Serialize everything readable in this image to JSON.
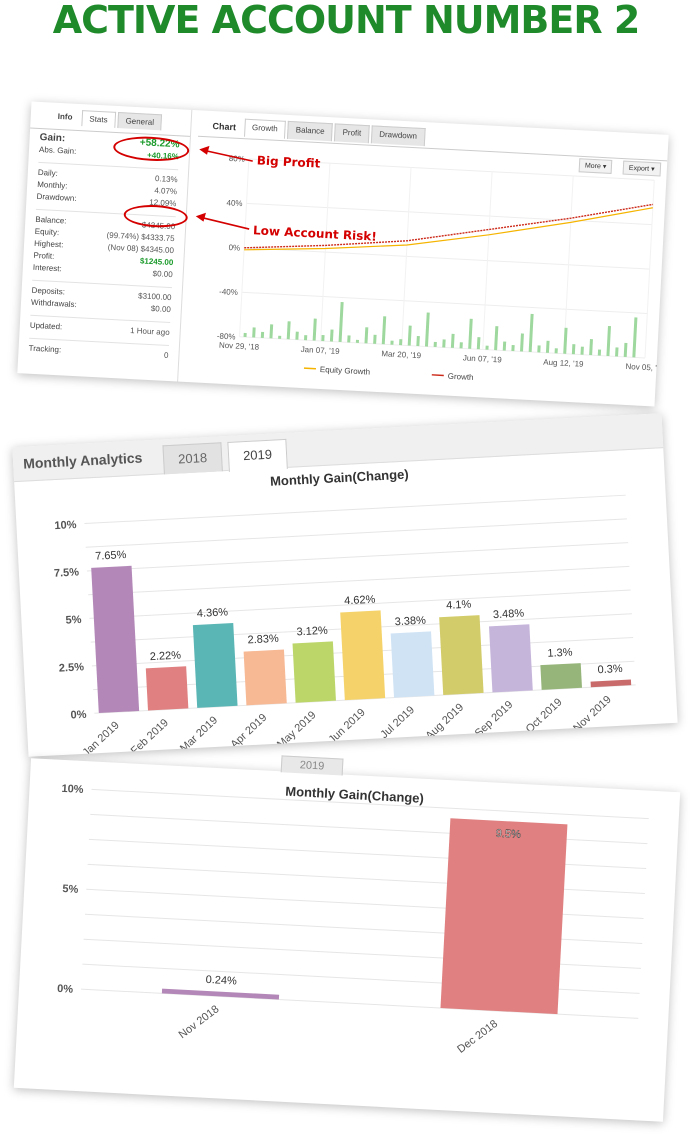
{
  "headline": "ACTIVE ACCOUNT NUMBER 2",
  "colors": {
    "headline": "#1e8a2a",
    "annotation": "#d40000",
    "profit_green": "#1a9a2a"
  },
  "info_panel": {
    "tabs": [
      "Info",
      "Stats",
      "General"
    ],
    "rows": [
      {
        "label": "Gain:",
        "value": "+58.22%"
      },
      {
        "label": "Abs. Gain:",
        "value": "+40.16%"
      },
      {
        "label": "Daily:",
        "value": "0.13%"
      },
      {
        "label": "Monthly:",
        "value": "4.07%"
      },
      {
        "label": "Drawdown:",
        "value": "12.09%"
      },
      {
        "label": "Balance:",
        "value": "$4345.00"
      },
      {
        "label": "Equity:",
        "value": "(99.74%) $4333.75"
      },
      {
        "label": "Highest:",
        "value": "(Nov 08) $4345.00"
      },
      {
        "label": "Profit:",
        "value": "$1245.00"
      },
      {
        "label": "Interest:",
        "value": "$0.00"
      },
      {
        "label": "Deposits:",
        "value": "$3100.00"
      },
      {
        "label": "Withdrawals:",
        "value": "$0.00"
      },
      {
        "label": "Updated:",
        "value": "1 Hour ago"
      },
      {
        "label": "Tracking:",
        "value": "0"
      }
    ]
  },
  "annotations": {
    "big_profit": "Big Profit",
    "low_risk": "Low Account Risk!"
  },
  "growth_panel": {
    "title": "Chart",
    "tabs": [
      "Growth",
      "Balance",
      "Profit",
      "Drawdown"
    ],
    "more_label": "More",
    "export_label": "Export",
    "y_ticks": [
      "80%",
      "40%",
      "0%",
      "-40%",
      "-80%"
    ],
    "x_ticks": [
      "Nov 29, '18",
      "Jan 07, '19",
      "Mar 20, '19",
      "Jun 07, '19",
      "Aug 12, '19",
      "Nov 05, '..."
    ],
    "legend": [
      "Equity Growth",
      "Growth"
    ],
    "series_colors": {
      "equity": "#f5b400",
      "growth": "#cc2a1a",
      "bars": "#9ed89e"
    }
  },
  "monthly_2019": {
    "section_title": "Monthly Analytics",
    "tabs": [
      "2018",
      "2019"
    ],
    "active_tab": "2019"
  },
  "monthly_2018": {
    "tab_partial": "2019"
  },
  "chart_data": [
    {
      "type": "line",
      "title": "Growth",
      "x_range": [
        "Nov 29, '18",
        "Nov 05, '19"
      ],
      "ylim": [
        -80,
        80
      ],
      "series": [
        {
          "name": "Growth",
          "x": [
            "Nov 29, '18",
            "Jan 07, '19",
            "Mar 20, '19",
            "Jun 07, '19",
            "Aug 12, '19",
            "Nov 05, '19"
          ],
          "values": [
            0,
            6,
            14,
            28,
            42,
            58.22
          ]
        },
        {
          "name": "Equity Growth",
          "x": [
            "Nov 29, '18",
            "Jan 07, '19",
            "Mar 20, '19",
            "Jun 07, '19",
            "Aug 12, '19",
            "Nov 05, '19"
          ],
          "values": [
            0,
            5,
            12,
            25,
            40,
            57
          ]
        }
      ]
    },
    {
      "type": "bar",
      "title": "Monthly Gain(Change)",
      "categories": [
        "Jan 2019",
        "Feb 2019",
        "Mar 2019",
        "Apr 2019",
        "May 2019",
        "Jun 2019",
        "Jul 2019",
        "Aug 2019",
        "Sep 2019",
        "Oct 2019",
        "Nov 2019"
      ],
      "values": [
        7.65,
        2.22,
        4.36,
        2.83,
        3.12,
        4.62,
        3.38,
        4.1,
        3.48,
        1.3,
        0.3
      ],
      "labels": [
        "7.65%",
        "2.22%",
        "4.36%",
        "2.83%",
        "3.12%",
        "4.62%",
        "3.38%",
        "4.1%",
        "3.48%",
        "1.3%",
        "0.3%"
      ],
      "colors": [
        "#b388b8",
        "#e08080",
        "#5ab5b5",
        "#f7b894",
        "#bcd66a",
        "#f5d36a",
        "#cfe3f5",
        "#d3cc6a",
        "#c6b5db",
        "#96b57a",
        "#c96b6b"
      ],
      "y_ticks": [
        "0%",
        "2.5%",
        "5%",
        "7.5%",
        "10%"
      ],
      "ylim": [
        0,
        10
      ]
    },
    {
      "type": "bar",
      "title": "Monthly Gain(Change)",
      "categories": [
        "Nov 2018",
        "Dec 2018"
      ],
      "values": [
        0.24,
        9.5
      ],
      "labels": [
        "0.24%",
        "9.5%"
      ],
      "colors": [
        "#b388b8",
        "#e08080"
      ],
      "y_ticks": [
        "0%",
        "5%",
        "10%"
      ],
      "ylim": [
        0,
        10
      ]
    }
  ]
}
